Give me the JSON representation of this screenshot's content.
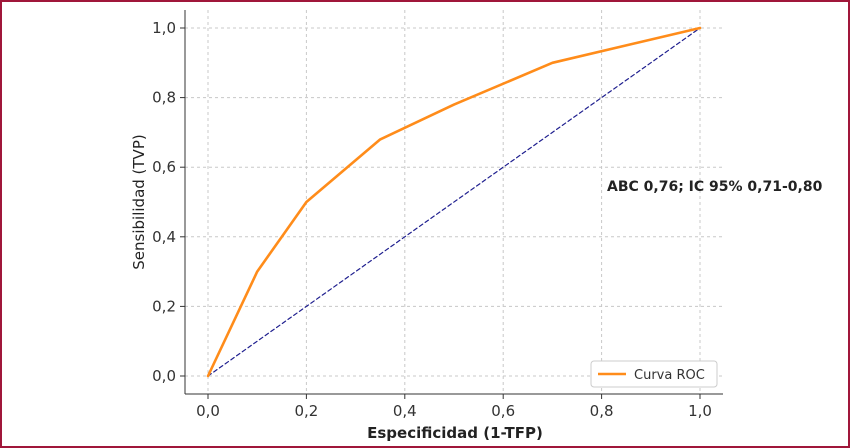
{
  "chart_data": {
    "type": "line",
    "title": "",
    "xlabel": "Especificidad (1-TFP)",
    "ylabel": "Sensibilidad (TVP)",
    "xlim": [
      0,
      1
    ],
    "ylim": [
      0,
      1
    ],
    "x_ticks": [
      "0,0",
      "0,2",
      "0,4",
      "0,6",
      "0,8",
      "1,0"
    ],
    "y_ticks": [
      "0,0",
      "0,2",
      "0,4",
      "0,6",
      "0,8",
      "1,0"
    ],
    "grid": true,
    "legend_position": "bottom-right",
    "series": [
      {
        "name": "Curva ROC",
        "color": "#ff8c1a",
        "style": "solid",
        "x": [
          0.0,
          0.1,
          0.2,
          0.35,
          0.5,
          0.7,
          1.0
        ],
        "y": [
          0.0,
          0.3,
          0.5,
          0.68,
          0.78,
          0.9,
          1.0
        ]
      },
      {
        "color": "#1f1f8f",
        "style": "dashed",
        "x": [
          0.0,
          1.0
        ],
        "y": [
          0.0,
          1.0
        ]
      }
    ],
    "annotations": [
      "ABC 0,76; IC 95% 0,71-0,80"
    ]
  }
}
